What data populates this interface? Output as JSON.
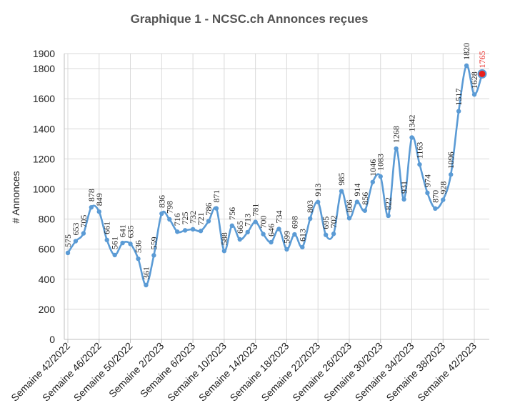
{
  "chart_data": {
    "type": "line",
    "title": "Graphique 1 - NCSC.ch Annonces reçues",
    "ylabel": "# Annonces",
    "xlabel": "",
    "ylim": [
      0,
      1900
    ],
    "yticks": [
      0,
      200,
      400,
      600,
      800,
      1000,
      1200,
      1400,
      1600,
      1800,
      1900
    ],
    "grid": true,
    "x_tick_labels": [
      "Semaine 42/2022",
      "Semaine 46/2022",
      "Semaine 50/2022",
      "Semaine 2/2023",
      "Semaine 6/2023",
      "Semaine 10/2023",
      "Semaine 14/2023",
      "Semaine 18/2023",
      "Semaine 22/2023",
      "Semaine 26/2023",
      "Semaine 30/2023",
      "Semaine 34/2023",
      "Semaine 38/2023",
      "Semaine 42/2023"
    ],
    "x_tick_every": 4,
    "series": [
      {
        "color": "#5b9bd5",
        "values": [
          575,
          653,
          705,
          878,
          849,
          661,
          561,
          641,
          635,
          536,
          361,
          559,
          836,
          798,
          716,
          725,
          732,
          721,
          786,
          871,
          588,
          756,
          665,
          713,
          781,
          700,
          646,
          734,
          599,
          698,
          613,
          803,
          913,
          695,
          702,
          985,
          806,
          914,
          856,
          1046,
          1083,
          822,
          1268,
          931,
          1342,
          1163,
          974,
          870,
          928,
          1096,
          1517,
          1820,
          1628,
          1765
        ]
      }
    ],
    "highlight": {
      "index": 53,
      "value": 1765,
      "color": "#e8201c"
    }
  }
}
